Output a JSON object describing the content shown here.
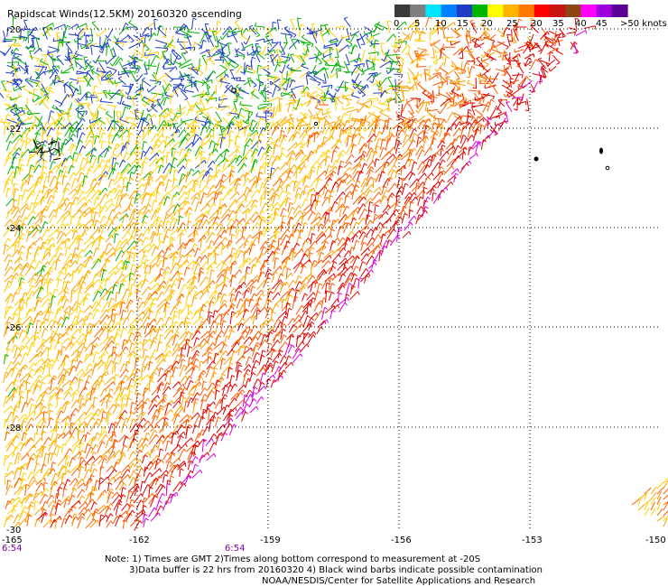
{
  "title": "Rapidscat Winds(12.5KM) 20160320 ascending",
  "legend": {
    "unit_label": ">50 knots",
    "ticks": [
      "0",
      "5",
      "10",
      "15",
      "20",
      "25",
      "30",
      "35",
      "40",
      "45"
    ],
    "colors": [
      "#3a3a3a",
      "#7f7f7f",
      "#00e5ff",
      "#0082ff",
      "#1e3cc8",
      "#00b400",
      "#ffff00",
      "#ffb400",
      "#ff7800",
      "#ff0000",
      "#c81414",
      "#8c4614",
      "#ff00ff",
      "#a000dc",
      "#5a0096"
    ]
  },
  "lat_labels": [
    "-20",
    "-22",
    "-24",
    "-26",
    "-28",
    "-30"
  ],
  "lon_labels": [
    "-165",
    "-162",
    "-159",
    "-156",
    "-153",
    "-150"
  ],
  "time_labels": [
    "6:54",
    "6:54"
  ],
  "notes": [
    "Note: 1) Times are GMT 2)Times along bottom correspond to measurement at -20S",
    "3)Data buffer is 22 hrs from 20160320 4) Black wind barbs indicate possible contamination",
    "NOAA/NESDIS/Center for Satellite Applications and Research"
  ],
  "swath_colors": {
    "calm": "#00b400",
    "light": "#1e3cc8",
    "moderate": "#ffd000",
    "fresh": "#ffa000",
    "strong": "#ff5a00",
    "gale": "#e00000",
    "storm": "#d800e0",
    "contaminated": "#000000"
  }
}
